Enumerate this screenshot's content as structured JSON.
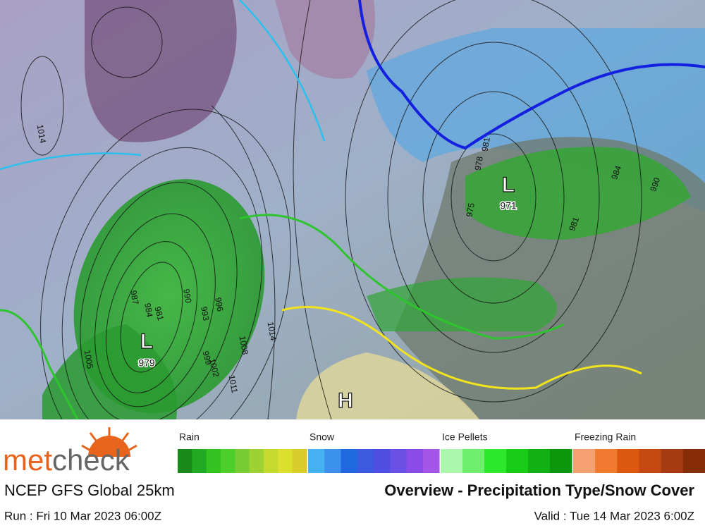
{
  "map": {
    "pressure_centres": [
      {
        "symbol": "L",
        "value": "979"
      },
      {
        "symbol": "L",
        "value": "971"
      },
      {
        "symbol": "H",
        "value": null
      }
    ],
    "isobar_labels": [
      "1014",
      "1005",
      "1002",
      "999",
      "996",
      "993",
      "990",
      "987",
      "984",
      "981",
      "1008",
      "1011",
      "1014",
      "975",
      "978",
      "981",
      "984",
      "990",
      "981"
    ]
  },
  "legend": {
    "groups": [
      {
        "name": "Rain",
        "colors": [
          "#1a8a1a",
          "#22aa22",
          "#33c21f",
          "#4ccf2a",
          "#78cc33",
          "#9ed233",
          "#c4da2e",
          "#dcdf2d",
          "#d8cc2a"
        ]
      },
      {
        "name": "Snow",
        "colors": [
          "#45b0f2",
          "#3a90ea",
          "#2068e0",
          "#3c5ae0",
          "#4e4ee2",
          "#6a50e4",
          "#8a4ce6",
          "#a454e6"
        ]
      },
      {
        "name": "Ice Pellets",
        "colors": [
          "#aaf6aa",
          "#6ef06e",
          "#2ee82e",
          "#18cc18",
          "#12b012",
          "#0c960c"
        ]
      },
      {
        "name": "Freezing Rain",
        "colors": [
          "#f4a070",
          "#f07a30",
          "#dc5810",
          "#c44a12",
          "#a63a10",
          "#862c08"
        ]
      }
    ]
  },
  "brand": [
    "met",
    "check"
  ],
  "footer": {
    "model": "NCEP GFS Global 25km",
    "title": "Overview - Precipitation Type/Snow Cover",
    "run": "Run : Fri 10 Mar 2023 06:00Z",
    "valid": "Valid : Tue 14 Mar 2023 6:00Z"
  }
}
